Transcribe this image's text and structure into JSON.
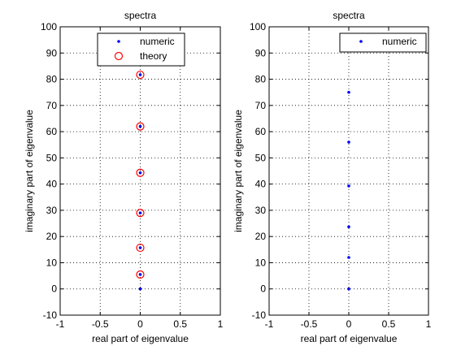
{
  "chart_data": [
    {
      "type": "scatter",
      "title": "spectra",
      "xlabel": "real part of eigenvalue",
      "ylabel": "imaginary part of eigenvalue",
      "xlim": [
        -1,
        1
      ],
      "ylim": [
        -10,
        100
      ],
      "xticks": [
        "-1",
        "-0.5",
        "0",
        "0.5",
        "1"
      ],
      "yticks": [
        "-10",
        "0",
        "10",
        "20",
        "30",
        "40",
        "50",
        "60",
        "70",
        "80",
        "90",
        "100"
      ],
      "grid": true,
      "legend_position": "top-right",
      "series": [
        {
          "name": "numeric",
          "marker": "dot",
          "color": "#0000ff",
          "points": [
            [
              0,
              0
            ],
            [
              0,
              5.5
            ],
            [
              0,
              15.7
            ],
            [
              0,
              29
            ],
            [
              0,
              44.3
            ],
            [
              0,
              62
            ],
            [
              0,
              81.7
            ]
          ]
        },
        {
          "name": "theory",
          "marker": "circle",
          "color": "#ff0000",
          "points": [
            [
              0,
              5.5
            ],
            [
              0,
              15.7
            ],
            [
              0,
              29
            ],
            [
              0,
              44.3
            ],
            [
              0,
              62
            ],
            [
              0,
              81.7
            ]
          ]
        }
      ]
    },
    {
      "type": "scatter",
      "title": "spectra",
      "xlabel": "real part of eigenvalue",
      "ylabel": "imaginary part of eigenvalue",
      "xlim": [
        -1,
        1
      ],
      "ylim": [
        -10,
        100
      ],
      "xticks": [
        "-1",
        "-0.5",
        "0",
        "0.5",
        "1"
      ],
      "yticks": [
        "-10",
        "0",
        "10",
        "20",
        "30",
        "40",
        "50",
        "60",
        "70",
        "80",
        "90",
        "100"
      ],
      "grid": true,
      "legend_position": "top-right",
      "series": [
        {
          "name": "numeric",
          "marker": "dot",
          "color": "#0000ff",
          "points": [
            [
              0,
              0
            ],
            [
              0,
              12
            ],
            [
              0,
              23.7
            ],
            [
              0,
              39.3
            ],
            [
              0,
              56
            ],
            [
              0,
              75
            ]
          ]
        }
      ]
    }
  ]
}
